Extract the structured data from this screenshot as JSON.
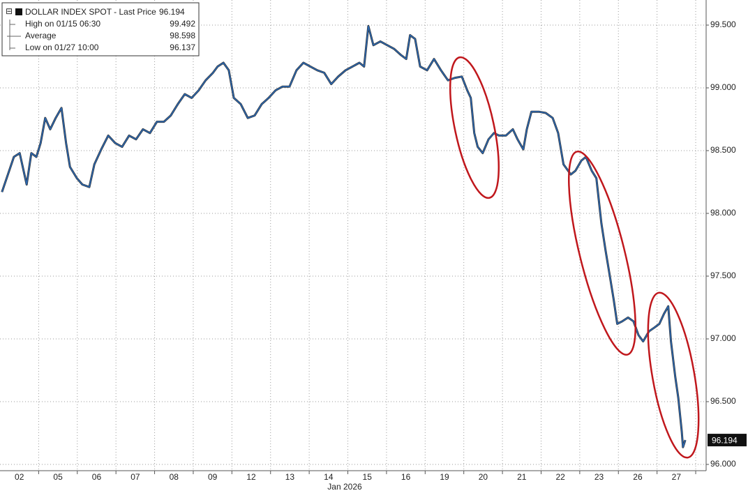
{
  "chart_data": {
    "type": "line",
    "legend": {
      "series_label": "DOLLAR INDEX SPOT - Last Price",
      "last_price": 96.194,
      "rows": [
        {
          "label": "High on 01/15 06:30",
          "value": 99.492
        },
        {
          "label": "Average",
          "value": 98.598
        },
        {
          "label": "Low on 01/27 10:00",
          "value": 96.137
        }
      ]
    },
    "xlabel": "Jan 2026",
    "xlim": [
      0,
      18.27
    ],
    "ylim": [
      95.95,
      99.7
    ],
    "xticks": [
      {
        "value": 0.5,
        "label": "02"
      },
      {
        "value": 1.5,
        "label": "05"
      },
      {
        "value": 2.5,
        "label": "06"
      },
      {
        "value": 3.5,
        "label": "07"
      },
      {
        "value": 4.5,
        "label": "08"
      },
      {
        "value": 5.5,
        "label": "09"
      },
      {
        "value": 6.5,
        "label": "12"
      },
      {
        "value": 7.5,
        "label": "13"
      },
      {
        "value": 8.5,
        "label": "14"
      },
      {
        "value": 9.5,
        "label": "15"
      },
      {
        "value": 10.5,
        "label": "16"
      },
      {
        "value": 11.5,
        "label": "19"
      },
      {
        "value": 12.5,
        "label": "20"
      },
      {
        "value": 13.5,
        "label": "21"
      },
      {
        "value": 14.5,
        "label": "22"
      },
      {
        "value": 15.5,
        "label": "23"
      },
      {
        "value": 16.5,
        "label": "26"
      },
      {
        "value": 17.5,
        "label": "27"
      }
    ],
    "yticks": [
      {
        "value": 96.0,
        "label": "96.000"
      },
      {
        "value": 96.5,
        "label": "96.500"
      },
      {
        "value": 97.0,
        "label": "97.000"
      },
      {
        "value": 97.5,
        "label": "97.500"
      },
      {
        "value": 98.0,
        "label": "98.000"
      },
      {
        "value": 98.5,
        "label": "98.500"
      },
      {
        "value": 99.0,
        "label": "99.000"
      },
      {
        "value": 99.5,
        "label": "99.500"
      }
    ],
    "grid": true,
    "series": [
      {
        "name": "DOLLAR INDEX SPOT",
        "color": "#2a67b1",
        "x": [
          0.05,
          0.36,
          0.51,
          0.69,
          0.81,
          0.94,
          1.05,
          1.17,
          1.3,
          1.44,
          1.59,
          1.71,
          1.81,
          1.99,
          2.13,
          2.31,
          2.44,
          2.62,
          2.8,
          2.98,
          3.16,
          3.34,
          3.52,
          3.7,
          3.88,
          4.06,
          4.24,
          4.42,
          4.6,
          4.78,
          4.96,
          5.14,
          5.32,
          5.51,
          5.63,
          5.78,
          5.92,
          6.05,
          6.23,
          6.41,
          6.59,
          6.77,
          6.95,
          7.13,
          7.31,
          7.49,
          7.67,
          7.85,
          8.03,
          8.21,
          8.39,
          8.57,
          8.75,
          8.94,
          9.12,
          9.3,
          9.42,
          9.53,
          9.66,
          9.84,
          10.02,
          10.2,
          10.38,
          10.51,
          10.61,
          10.74,
          10.87,
          11.05,
          11.23,
          11.41,
          11.59,
          11.77,
          11.95,
          12.09,
          12.18,
          12.27,
          12.36,
          12.49,
          12.64,
          12.78,
          12.91,
          13.09,
          13.27,
          13.39,
          13.54,
          13.63,
          13.75,
          13.94,
          14.12,
          14.3,
          14.44,
          14.58,
          14.77,
          14.89,
          15.04,
          15.16,
          15.31,
          15.43,
          15.56,
          15.67,
          15.79,
          15.88,
          15.97,
          16.1,
          16.25,
          16.39,
          16.52,
          16.64,
          16.79,
          16.93,
          17.06,
          17.18,
          17.29,
          17.36,
          17.47,
          17.55,
          17.64,
          17.67,
          17.73
        ],
        "values": [
          98.17,
          98.45,
          98.48,
          98.23,
          98.48,
          98.45,
          98.56,
          98.76,
          98.67,
          98.76,
          98.84,
          98.56,
          98.37,
          98.28,
          98.23,
          98.21,
          98.39,
          98.51,
          98.62,
          98.56,
          98.53,
          98.62,
          98.59,
          98.67,
          98.64,
          98.73,
          98.73,
          98.78,
          98.87,
          98.95,
          98.92,
          98.98,
          99.06,
          99.12,
          99.17,
          99.2,
          99.14,
          98.92,
          98.87,
          98.76,
          98.78,
          98.87,
          98.92,
          98.98,
          99.01,
          99.01,
          99.14,
          99.2,
          99.17,
          99.14,
          99.12,
          99.03,
          99.09,
          99.14,
          99.17,
          99.2,
          99.17,
          99.492,
          99.34,
          99.37,
          99.34,
          99.31,
          99.26,
          99.23,
          99.42,
          99.39,
          99.17,
          99.14,
          99.23,
          99.14,
          99.06,
          99.08,
          99.09,
          98.98,
          98.92,
          98.64,
          98.53,
          98.48,
          98.59,
          98.64,
          98.62,
          98.62,
          98.67,
          98.59,
          98.51,
          98.67,
          98.81,
          98.81,
          98.8,
          98.76,
          98.64,
          98.39,
          98.31,
          98.34,
          98.42,
          98.45,
          98.34,
          98.28,
          97.92,
          97.7,
          97.48,
          97.31,
          97.12,
          97.14,
          97.17,
          97.14,
          97.03,
          96.98,
          97.06,
          97.09,
          97.12,
          97.2,
          97.26,
          96.98,
          96.7,
          96.53,
          96.26,
          96.137,
          96.194
        ]
      }
    ]
  }
}
